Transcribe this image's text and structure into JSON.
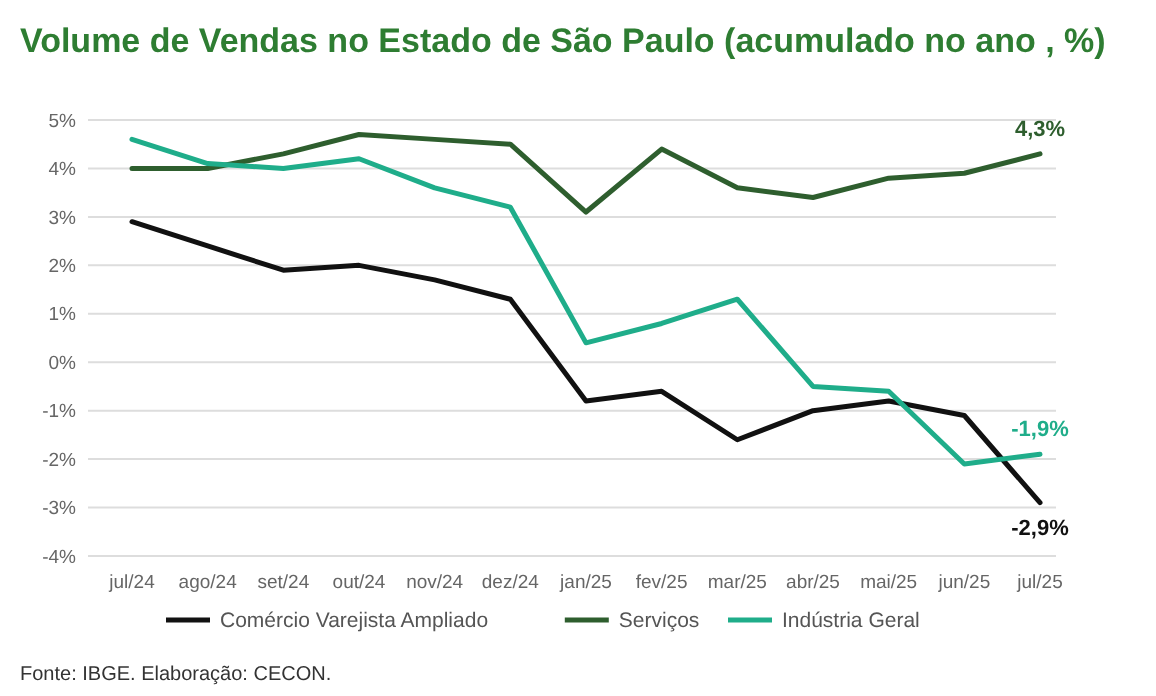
{
  "chart_data": {
    "type": "line",
    "title": "Volume de Vendas no Estado de São Paulo (acumulado no ano , %)",
    "categories": [
      "jul/24",
      "ago/24",
      "set/24",
      "out/24",
      "nov/24",
      "dez/24",
      "jan/25",
      "fev/25",
      "mar/25",
      "abr/25",
      "mai/25",
      "jun/25",
      "jul/25"
    ],
    "series": [
      {
        "name": "Comércio Varejista Ampliado",
        "color": "#111111",
        "values": [
          2.9,
          2.4,
          1.9,
          2.0,
          1.7,
          1.3,
          -0.8,
          -0.6,
          -1.6,
          -1.0,
          -0.8,
          -1.1,
          -2.9
        ],
        "value_labels": [
          null,
          null,
          null,
          null,
          null,
          null,
          null,
          null,
          null,
          null,
          null,
          null,
          "-2,9%"
        ]
      },
      {
        "name": "Serviços",
        "color": "#2e5e2e",
        "values": [
          4.0,
          4.0,
          4.3,
          4.7,
          4.6,
          4.5,
          3.1,
          4.4,
          3.6,
          3.4,
          3.8,
          3.9,
          4.3
        ],
        "value_labels": [
          null,
          null,
          null,
          null,
          null,
          null,
          null,
          null,
          null,
          null,
          null,
          null,
          "4,3%"
        ]
      },
      {
        "name": "Indústria Geral",
        "color": "#1fad8a",
        "values": [
          4.6,
          4.1,
          4.0,
          4.2,
          3.6,
          3.2,
          0.4,
          0.8,
          1.3,
          -0.5,
          -0.6,
          -2.1,
          -1.9
        ],
        "value_labels": [
          null,
          null,
          null,
          null,
          null,
          null,
          null,
          null,
          null,
          null,
          null,
          null,
          "-1,9%"
        ]
      }
    ],
    "ylim": [
      -4,
      5
    ],
    "yticks": [
      {
        "value": -4,
        "label": "-4%"
      },
      {
        "value": -3,
        "label": "-3%"
      },
      {
        "value": -2,
        "label": "-2%"
      },
      {
        "value": -1,
        "label": "-1%"
      },
      {
        "value": 0,
        "label": "0%"
      },
      {
        "value": 1,
        "label": "1%"
      },
      {
        "value": 2,
        "label": "2%"
      },
      {
        "value": 3,
        "label": "3%"
      },
      {
        "value": 4,
        "label": "4%"
      },
      {
        "value": 5,
        "label": "5%"
      }
    ],
    "grid": "y",
    "legend": "bottom",
    "marker": "none",
    "line_style": "solid",
    "annotations": [
      "Fonte: IBGE. Elaboração: CECON."
    ]
  }
}
